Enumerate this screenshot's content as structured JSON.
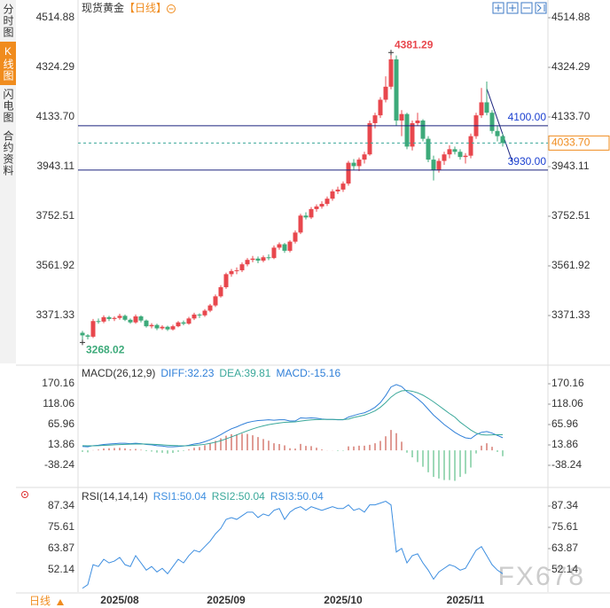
{
  "sidebar": {
    "tabs": [
      "分时图",
      "K线图",
      "闪电图",
      "合约资料"
    ]
  },
  "footer": {
    "period": "日线",
    "watermark": "FX678"
  },
  "chart_data": [
    {
      "type": "candlestick",
      "title": "现货黄金",
      "period": "【日线】",
      "categories": [
        null,
        null,
        null,
        null,
        null,
        null,
        null,
        "2025/08",
        null,
        null,
        null,
        null,
        null,
        null,
        null,
        null,
        null,
        null,
        null,
        null,
        null,
        null,
        null,
        null,
        null,
        null,
        null,
        "2025/09",
        null,
        null,
        null,
        null,
        null,
        null,
        null,
        null,
        null,
        null,
        null,
        null,
        null,
        null,
        null,
        null,
        null,
        null,
        null,
        null,
        null,
        "2025/10",
        null,
        null,
        null,
        null,
        null,
        null,
        null,
        null,
        null,
        null,
        null,
        null,
        null,
        null,
        null,
        null,
        null,
        null,
        null,
        null,
        null,
        null,
        "2025/11",
        null,
        null,
        null,
        null,
        null,
        null,
        null
      ],
      "open": [
        3305,
        3295,
        3290,
        3350,
        3348,
        3365,
        3358,
        3362,
        3370,
        3355,
        3345,
        3368,
        3352,
        3330,
        3335,
        3322,
        3328,
        3318,
        3330,
        3345,
        3340,
        3360,
        3375,
        3372,
        3390,
        3410,
        3445,
        3480,
        3530,
        3542,
        3545,
        3568,
        3585,
        3590,
        3582,
        3595,
        3592,
        3632,
        3645,
        3620,
        3655,
        3690,
        3755,
        3748,
        3780,
        3790,
        3800,
        3820,
        3848,
        3855,
        3878,
        3958,
        3945,
        3970,
        3990,
        4110,
        4140,
        4200,
        4250,
        4355,
        4120,
        4145,
        4020,
        4110,
        4120,
        4050,
        3970,
        3930,
        3965,
        3990,
        4010,
        4000,
        3980,
        3985,
        4060,
        4140,
        4190,
        4150,
        4080,
        4060
      ],
      "high": [
        3312,
        3300,
        3358,
        3360,
        3372,
        3370,
        3368,
        3378,
        3375,
        3360,
        3375,
        3372,
        3356,
        3342,
        3340,
        3334,
        3332,
        3336,
        3350,
        3352,
        3366,
        3382,
        3380,
        3396,
        3416,
        3452,
        3488,
        3536,
        3550,
        3556,
        3575,
        3592,
        3600,
        3598,
        3602,
        3606,
        3640,
        3652,
        3650,
        3660,
        3698,
        3762,
        3768,
        3788,
        3798,
        3810,
        3828,
        3856,
        3866,
        3886,
        3965,
        3972,
        3978,
        4000,
        4120,
        4150,
        4210,
        4290,
        4381.29,
        4370,
        4160,
        4150,
        4120,
        4150,
        4125,
        4060,
        3985,
        3975,
        4000,
        4025,
        4020,
        4010,
        3995,
        4070,
        4150,
        4245,
        4270,
        4160,
        4100,
        4070
      ],
      "low": [
        3268.02,
        3280,
        3285,
        3340,
        3342,
        3350,
        3350,
        3355,
        3350,
        3340,
        3340,
        3345,
        3325,
        3322,
        3315,
        3316,
        3312,
        3314,
        3326,
        3334,
        3336,
        3354,
        3362,
        3366,
        3384,
        3404,
        3440,
        3474,
        3520,
        3530,
        3538,
        3560,
        3576,
        3572,
        3576,
        3584,
        3588,
        3624,
        3612,
        3614,
        3648,
        3684,
        3740,
        3742,
        3770,
        3782,
        3792,
        3812,
        3838,
        3846,
        3870,
        3930,
        3926,
        3955,
        3985,
        4090,
        4130,
        4190,
        4240,
        4100,
        4060,
        4010,
        4005,
        4100,
        4040,
        3960,
        3890,
        3920,
        3950,
        3975,
        3990,
        3970,
        3955,
        3975,
        4050,
        4130,
        4140,
        4070,
        4040,
        4020
      ],
      "close": [
        3295,
        3290,
        3350,
        3348,
        3365,
        3358,
        3362,
        3370,
        3355,
        3345,
        3368,
        3352,
        3330,
        3335,
        3322,
        3328,
        3318,
        3330,
        3345,
        3340,
        3360,
        3375,
        3372,
        3390,
        3410,
        3445,
        3480,
        3530,
        3542,
        3545,
        3568,
        3585,
        3590,
        3582,
        3595,
        3592,
        3632,
        3645,
        3620,
        3655,
        3690,
        3755,
        3748,
        3780,
        3790,
        3800,
        3820,
        3848,
        3855,
        3878,
        3958,
        3945,
        3970,
        3990,
        4110,
        4140,
        4200,
        4250,
        4355,
        4120,
        4145,
        4020,
        4110,
        4120,
        4050,
        3970,
        3930,
        3965,
        3990,
        4010,
        4000,
        3980,
        3985,
        4060,
        4140,
        4190,
        4150,
        4080,
        4060,
        4033.7
      ],
      "up_color": "#e8474d",
      "down_color": "#3daa7a",
      "ylim": [
        3187.5,
        4548.9
      ],
      "yticks": [
        4514.88,
        4324.29,
        {
          "value": 4133.7,
          "label": "4133.70"
        },
        3943.11,
        3752.51,
        3561.92,
        3371.33
      ],
      "annotations": [
        {
          "value": 4381.29,
          "color": "#e8474d"
        },
        {
          "value": 3268.02,
          "color": "#3daa7a"
        }
      ],
      "levels": [
        {
          "value": 4100,
          "label": "4100.00",
          "color": "#1a237e"
        },
        {
          "value": 3930,
          "label": "3930.00",
          "color": "#1a237e"
        }
      ],
      "last_price": {
        "value": 4033.7,
        "label": "4033.70",
        "color": "#f08c1e"
      }
    },
    {
      "type": "macd",
      "title": "MACD(26,12,9)",
      "series": [
        {
          "name": "DIFF:32.23",
          "color": "#2f7fd8",
          "values": [
            10,
            9,
            12,
            13,
            15,
            16,
            17,
            18,
            18,
            17,
            18,
            17,
            15,
            14,
            12,
            11,
            9,
            9,
            10,
            11,
            13,
            16,
            18,
            22,
            27,
            33,
            40,
            48,
            55,
            60,
            66,
            71,
            74,
            76,
            77,
            78,
            77,
            78,
            78,
            75,
            75,
            83,
            82,
            83,
            82,
            80,
            79,
            79,
            78,
            78,
            85,
            89,
            93,
            96,
            102,
            110,
            122,
            140,
            162,
            168,
            163,
            150,
            142,
            132,
            120,
            105,
            90,
            78,
            66,
            56,
            46,
            38,
            32,
            30,
            40,
            46,
            48,
            44,
            38,
            32.23
          ]
        },
        {
          "name": "DEA:39.81",
          "color": "#3aa89a",
          "values": [
            12,
            11.6,
            11.7,
            12,
            12.6,
            13.3,
            14,
            14.8,
            15.4,
            15.7,
            16.2,
            16.3,
            16,
            15.6,
            14.9,
            14.1,
            13.1,
            12.3,
            11.8,
            11.7,
            11.9,
            12.7,
            13.8,
            15.4,
            17.7,
            20.8,
            24.6,
            29.3,
            34.4,
            39.5,
            44.8,
            50,
            54.8,
            59,
            62.6,
            65.7,
            68,
            70,
            71.6,
            72.3,
            72.8,
            74.8,
            76.3,
            77.7,
            78.6,
            78.9,
            78.9,
            78.9,
            78.7,
            78.6,
            79.9,
            84,
            87,
            90,
            95,
            101,
            110,
            122,
            136,
            146,
            152,
            153,
            151,
            147,
            141,
            133,
            124,
            114,
            104,
            94,
            85,
            72,
            62,
            52,
            44,
            40,
            39,
            39.5,
            40,
            39.81
          ]
        }
      ],
      "histogram": {
        "name": "MACD:-15.16",
        "color": "#2f7fd8",
        "up_color": "#c0392b",
        "down_color": "#3cb371",
        "values": [
          -4,
          -5.2,
          0.6,
          2,
          4.8,
          5.4,
          6,
          6.4,
          5.2,
          2.6,
          3.6,
          1.4,
          -2,
          -3.2,
          -5.8,
          -6.2,
          -8.2,
          -6.6,
          -3.6,
          -1.4,
          2.2,
          6.6,
          8.4,
          13.2,
          18.6,
          24.4,
          30.8,
          37.4,
          41.2,
          41,
          42.4,
          42,
          38.4,
          34,
          28.8,
          24.6,
          18,
          16,
          12.8,
          5.4,
          4.4,
          16.4,
          11.4,
          10.6,
          6.8,
          2.2,
          0.2,
          0.2,
          -1.4,
          -1.2,
          10.2,
          10,
          12,
          12,
          14,
          18,
          24,
          36,
          52,
          44,
          22,
          -6,
          -18,
          -30,
          -42,
          -56,
          -68,
          -72,
          -76,
          -76,
          -78,
          -68,
          -60,
          -44,
          -8,
          12,
          18,
          9,
          -4,
          -15.16
        ]
      },
      "ylim": [
        -90.34,
        210.9
      ],
      "yticks": [
        170.16,
        118.06,
        65.96,
        13.86,
        -38.24
      ]
    },
    {
      "type": "line",
      "title": "RSI(14,14,14)",
      "series": [
        {
          "name": "RSI1:50.04",
          "color": "#3d8ee0",
          "values": [
            42,
            44,
            55,
            54,
            58,
            56,
            57,
            59,
            55,
            54,
            60,
            56,
            52,
            54,
            51,
            53,
            50,
            54,
            58,
            56,
            60,
            63,
            62,
            65,
            68,
            72,
            75,
            80,
            81,
            80,
            82,
            84,
            84,
            81,
            83,
            82,
            85,
            86,
            80,
            84,
            86,
            87,
            85,
            87,
            86,
            85,
            86,
            87,
            86,
            86,
            88,
            85,
            86,
            84,
            88,
            88,
            89,
            90,
            88,
            62,
            64,
            56,
            60,
            61,
            56,
            52,
            47,
            51,
            53,
            55,
            54,
            52,
            53,
            58,
            63,
            65,
            60,
            55,
            52,
            50.04
          ]
        },
        {
          "name": "RSI2:50.04",
          "color": "#3aa89a"
        },
        {
          "name": "RSI3:50.04",
          "color": "#3d8ee0"
        }
      ],
      "ylim": [
        39.92,
        96.63
      ],
      "yticks": [
        87.34,
        75.61,
        63.87,
        52.14
      ]
    }
  ]
}
